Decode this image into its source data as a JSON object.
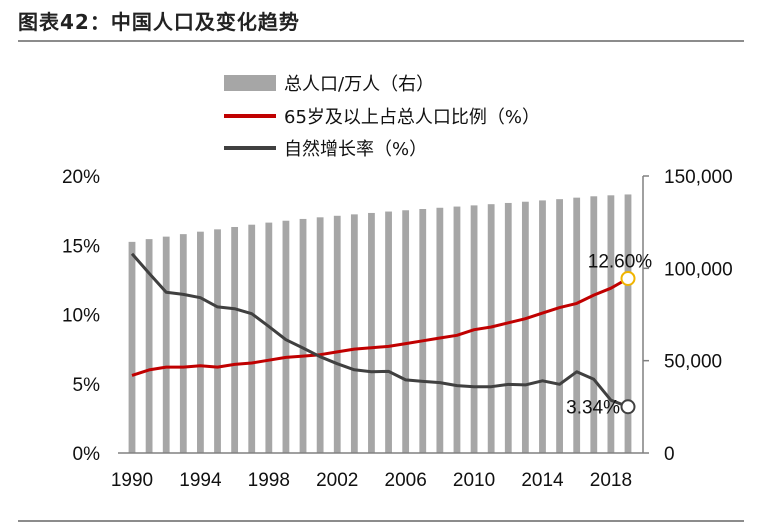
{
  "figure": {
    "title": "图表42：中国人口及变化趋势"
  },
  "chart_data": {
    "type": "bar",
    "x": [
      1990,
      1991,
      1992,
      1993,
      1994,
      1995,
      1996,
      1997,
      1998,
      1999,
      2000,
      2001,
      2002,
      2003,
      2004,
      2005,
      2006,
      2007,
      2008,
      2009,
      2010,
      2011,
      2012,
      2013,
      2014,
      2015,
      2016,
      2017,
      2018,
      2019
    ],
    "x_tick_labels": [
      "1990",
      "1994",
      "1998",
      "2002",
      "2006",
      "2010",
      "2014",
      "2018"
    ],
    "x_tick_values": [
      1990,
      1994,
      1998,
      2002,
      2006,
      2010,
      2014,
      2018
    ],
    "y_left": {
      "range": [
        0,
        20
      ],
      "tick_labels": [
        "0%",
        "5%",
        "10%",
        "15%",
        "20%"
      ],
      "tick_values": [
        0,
        5,
        10,
        15,
        20
      ]
    },
    "y_right": {
      "range": [
        0,
        150000
      ],
      "tick_labels": [
        "0",
        "50,000",
        "100,000",
        "150,000"
      ],
      "tick_values": [
        0,
        50000,
        100000,
        150000
      ]
    },
    "series": [
      {
        "name": "总人口/万人（右）",
        "type": "bar",
        "axis": "right",
        "color": "#a6a6a6",
        "values": [
          114333,
          115823,
          117171,
          118517,
          119850,
          121121,
          122389,
          123626,
          124761,
          125786,
          126743,
          127627,
          128453,
          129227,
          129988,
          130756,
          131448,
          132129,
          132802,
          133450,
          134091,
          134735,
          135404,
          136072,
          136782,
          137462,
          138271,
          139008,
          139538,
          140005
        ]
      },
      {
        "name": "65岁及以上占总人口比例（%）",
        "type": "line",
        "axis": "left",
        "color": "#c00000",
        "values": [
          5.6,
          6.0,
          6.2,
          6.2,
          6.3,
          6.2,
          6.4,
          6.5,
          6.7,
          6.9,
          7.0,
          7.1,
          7.3,
          7.5,
          7.6,
          7.7,
          7.9,
          8.1,
          8.3,
          8.5,
          8.9,
          9.1,
          9.4,
          9.7,
          10.1,
          10.5,
          10.8,
          11.4,
          11.9,
          12.6
        ]
      },
      {
        "name": "自然增长率（%）",
        "type": "line",
        "axis": "left",
        "color": "#404040",
        "values": [
          14.39,
          12.98,
          11.6,
          11.45,
          11.21,
          10.55,
          10.42,
          10.06,
          9.14,
          8.18,
          7.58,
          6.95,
          6.45,
          6.01,
          5.87,
          5.89,
          5.28,
          5.17,
          5.08,
          4.87,
          4.79,
          4.79,
          4.95,
          4.92,
          5.21,
          4.96,
          5.86,
          5.32,
          3.81,
          3.34
        ]
      }
    ],
    "annotations": [
      {
        "text": "12.60%",
        "series": 1,
        "x": 2019,
        "value": 12.6,
        "marker_fill": "#ffffff",
        "marker_stroke": "#f0b400"
      },
      {
        "text": "3.34%",
        "series": 2,
        "x": 2019,
        "value": 3.34,
        "marker_fill": "#ffffff",
        "marker_stroke": "#404040"
      }
    ],
    "legend_position": "top-center",
    "grid": false
  }
}
